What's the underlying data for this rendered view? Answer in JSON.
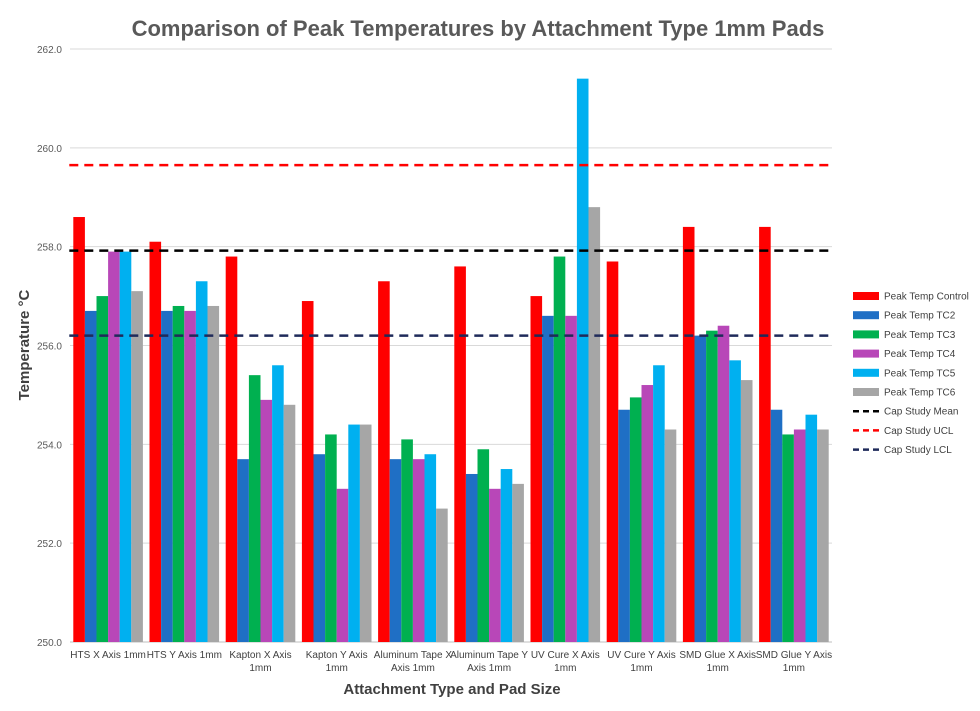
{
  "chart_data": {
    "type": "bar",
    "title": "Comparison of Peak Temperatures by Attachment Type 1mm Pads",
    "xlabel": "Attachment Type and Pad Size",
    "ylabel": "Temperature °C",
    "ylim": [
      250,
      262
    ],
    "yticks": [
      "250.0",
      "252.0",
      "254.0",
      "256.0",
      "258.0",
      "260.0",
      "262.0"
    ],
    "ytick_values": [
      250,
      252,
      254,
      256,
      258,
      260,
      262
    ],
    "grid": "horizontal",
    "legend_position": "right",
    "categories": [
      [
        "HTS X Axis 1mm"
      ],
      [
        "HTS Y Axis 1mm"
      ],
      [
        "Kapton X Axis",
        "1mm"
      ],
      [
        "Kapton Y Axis",
        "1mm"
      ],
      [
        "Aluminum Tape X",
        "Axis 1mm"
      ],
      [
        "Aluminum Tape Y",
        "Axis 1mm"
      ],
      [
        "UV Cure X Axis",
        "1mm"
      ],
      [
        "UV Cure Y Axis",
        "1mm"
      ],
      [
        "SMD Glue X Axis",
        "1mm"
      ],
      [
        "SMD Glue Y Axis",
        "1mm"
      ]
    ],
    "series": [
      {
        "name": "Peak Temp Control",
        "color": "#ff0000",
        "values": [
          258.6,
          258.1,
          257.8,
          256.9,
          257.3,
          257.6,
          257.0,
          257.7,
          258.4,
          258.4
        ]
      },
      {
        "name": "Peak Temp TC2",
        "color": "#1f6fc5",
        "values": [
          256.7,
          256.7,
          253.7,
          253.8,
          253.7,
          253.4,
          256.6,
          254.7,
          256.2,
          254.7
        ]
      },
      {
        "name": "Peak Temp TC3",
        "color": "#00b050",
        "values": [
          257.0,
          256.8,
          255.4,
          254.2,
          254.1,
          253.9,
          257.8,
          254.95,
          256.3,
          254.2
        ]
      },
      {
        "name": "Peak Temp TC4",
        "color": "#b847b8",
        "values": [
          257.9,
          256.7,
          254.9,
          253.1,
          253.7,
          253.1,
          256.6,
          255.2,
          256.4,
          254.3
        ]
      },
      {
        "name": "Peak Temp TC5",
        "color": "#00b0f0",
        "values": [
          257.9,
          257.3,
          255.6,
          254.4,
          253.8,
          253.5,
          261.4,
          255.6,
          255.7,
          254.6
        ]
      },
      {
        "name": "Peak Temp TC6",
        "color": "#a6a6a6",
        "values": [
          257.1,
          256.8,
          254.8,
          254.4,
          252.7,
          253.2,
          258.8,
          254.3,
          255.3,
          254.3
        ]
      }
    ],
    "reference_lines": [
      {
        "name": "Cap Study Mean",
        "color": "#000000",
        "value": 257.92
      },
      {
        "name": "Cap Study UCL",
        "color": "#ff0000",
        "value": 259.65
      },
      {
        "name": "Cap Study LCL",
        "color": "#1f2a5a",
        "value": 256.2
      }
    ]
  }
}
